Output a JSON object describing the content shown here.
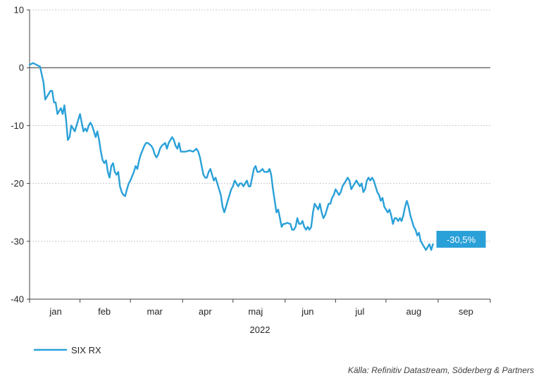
{
  "chart_data": {
    "type": "line",
    "ylim": [
      -40,
      10
    ],
    "yticks": [
      10,
      0,
      -10,
      -20,
      -30,
      -40
    ],
    "ytick_labels": [
      "10",
      "0",
      "-10",
      "-20",
      "-30",
      "-40"
    ],
    "grid": "horizontal dotted",
    "zero_line": true,
    "xlim": [
      0,
      265
    ],
    "months": [
      {
        "label": "jan",
        "center": 15
      },
      {
        "label": "feb",
        "center": 43
      },
      {
        "label": "mar",
        "center": 72
      },
      {
        "label": "apr",
        "center": 101
      },
      {
        "label": "maj",
        "center": 130
      },
      {
        "label": "jun",
        "center": 160
      },
      {
        "label": "jul",
        "center": 190
      },
      {
        "label": "aug",
        "center": 221
      },
      {
        "label": "sep",
        "center": 251
      }
    ],
    "month_bounds": [
      0,
      29,
      58,
      88,
      117,
      147,
      176,
      205,
      235,
      265
    ],
    "year_label": "2022",
    "series": [
      {
        "name": "SIX RX",
        "color": "#2aa0d8",
        "points": [
          [
            0,
            0.5
          ],
          [
            2,
            0.8
          ],
          [
            4,
            0.5
          ],
          [
            6,
            0.2
          ],
          [
            8,
            -2.5
          ],
          [
            9,
            -5.5
          ],
          [
            10,
            -5
          ],
          [
            12,
            -4
          ],
          [
            13,
            -4
          ],
          [
            14,
            -6
          ],
          [
            15,
            -6
          ],
          [
            16,
            -8
          ],
          [
            17,
            -7.5
          ],
          [
            18,
            -7
          ],
          [
            19,
            -8
          ],
          [
            20,
            -6.5
          ],
          [
            21,
            -9
          ],
          [
            22,
            -12.5
          ],
          [
            23,
            -12
          ],
          [
            24,
            -10
          ],
          [
            25,
            -10.5
          ],
          [
            26,
            -11
          ],
          [
            28,
            -9
          ],
          [
            29,
            -8
          ],
          [
            30,
            -9.5
          ],
          [
            31,
            -11
          ],
          [
            32,
            -10.5
          ],
          [
            33,
            -11
          ],
          [
            34,
            -10
          ],
          [
            35,
            -9.5
          ],
          [
            36,
            -10
          ],
          [
            37,
            -11
          ],
          [
            38,
            -12
          ],
          [
            39,
            -11
          ],
          [
            40,
            -12.5
          ],
          [
            41,
            -14.5
          ],
          [
            42,
            -16
          ],
          [
            43,
            -16.5
          ],
          [
            44,
            -16
          ],
          [
            45,
            -18
          ],
          [
            46,
            -19
          ],
          [
            47,
            -17
          ],
          [
            48,
            -16.5
          ],
          [
            49,
            -18
          ],
          [
            50,
            -18.5
          ],
          [
            51,
            -18
          ],
          [
            52,
            -20.5
          ],
          [
            53,
            -21.5
          ],
          [
            54,
            -22
          ],
          [
            55,
            -22.2
          ],
          [
            56,
            -21
          ],
          [
            57,
            -20
          ],
          [
            58,
            -19.5
          ],
          [
            60,
            -18
          ],
          [
            61,
            -17
          ],
          [
            62,
            -17.5
          ],
          [
            63,
            -16
          ],
          [
            64,
            -15
          ],
          [
            66,
            -13.5
          ],
          [
            67,
            -13
          ],
          [
            68,
            -13
          ],
          [
            70,
            -13.5
          ],
          [
            71,
            -14
          ],
          [
            72,
            -15
          ],
          [
            73,
            -15.5
          ],
          [
            74,
            -15
          ],
          [
            75,
            -14
          ],
          [
            76,
            -13.5
          ],
          [
            78,
            -13
          ],
          [
            79,
            -14
          ],
          [
            80,
            -13
          ],
          [
            81,
            -12.5
          ],
          [
            82,
            -12
          ],
          [
            83,
            -12.5
          ],
          [
            84,
            -13.5
          ],
          [
            85,
            -14
          ],
          [
            86,
            -13
          ],
          [
            87,
            -14.5
          ],
          [
            88,
            -14.5
          ],
          [
            90,
            -14.5
          ],
          [
            92,
            -14.3
          ],
          [
            94,
            -14.5
          ],
          [
            96,
            -14
          ],
          [
            97,
            -14.5
          ],
          [
            98,
            -15.5
          ],
          [
            99,
            -17
          ],
          [
            100,
            -18.5
          ],
          [
            101,
            -19
          ],
          [
            102,
            -19
          ],
          [
            103,
            -18
          ],
          [
            104,
            -17.5
          ],
          [
            105,
            -18.5
          ],
          [
            106,
            -19.5
          ],
          [
            107,
            -19
          ],
          [
            108,
            -20
          ],
          [
            109,
            -21
          ],
          [
            110,
            -22
          ],
          [
            111,
            -24
          ],
          [
            112,
            -25
          ],
          [
            113,
            -24
          ],
          [
            114,
            -23
          ],
          [
            115,
            -22
          ],
          [
            116,
            -21
          ],
          [
            117,
            -20.5
          ],
          [
            118,
            -19.5
          ],
          [
            119,
            -20
          ],
          [
            120,
            -20.5
          ],
          [
            121,
            -20
          ],
          [
            122,
            -20
          ],
          [
            123,
            -20.5
          ],
          [
            124,
            -20
          ],
          [
            125,
            -19.5
          ],
          [
            126,
            -20.5
          ],
          [
            127,
            -20.5
          ],
          [
            128,
            -19
          ],
          [
            129,
            -17.5
          ],
          [
            130,
            -17
          ],
          [
            131,
            -18
          ],
          [
            132,
            -18
          ],
          [
            133,
            -17.8
          ],
          [
            134,
            -17.5
          ],
          [
            135,
            -18
          ],
          [
            136,
            -18
          ],
          [
            137,
            -18
          ],
          [
            138,
            -17.5
          ],
          [
            139,
            -18.5
          ],
          [
            140,
            -21
          ],
          [
            141,
            -23
          ],
          [
            142,
            -25
          ],
          [
            143,
            -24.5
          ],
          [
            144,
            -26
          ],
          [
            145,
            -27.5
          ],
          [
            146,
            -27
          ],
          [
            147,
            -27
          ],
          [
            148,
            -26.8
          ],
          [
            150,
            -27
          ],
          [
            151,
            -28
          ],
          [
            152,
            -28
          ],
          [
            153,
            -27.5
          ],
          [
            154,
            -26
          ],
          [
            155,
            -27
          ],
          [
            156,
            -27
          ],
          [
            157,
            -26.5
          ],
          [
            158,
            -27.5
          ],
          [
            159,
            -28
          ],
          [
            160,
            -27.5
          ],
          [
            161,
            -28
          ],
          [
            162,
            -27.5
          ],
          [
            163,
            -25
          ],
          [
            164,
            -23.5
          ],
          [
            165,
            -24
          ],
          [
            166,
            -24.5
          ],
          [
            167,
            -23.5
          ],
          [
            168,
            -25
          ],
          [
            169,
            -26
          ],
          [
            170,
            -25.5
          ],
          [
            171,
            -24.5
          ],
          [
            172,
            -23.5
          ],
          [
            173,
            -23.5
          ],
          [
            174,
            -22.5
          ],
          [
            175,
            -22
          ],
          [
            176,
            -21
          ],
          [
            177,
            -21.5
          ],
          [
            178,
            -22
          ],
          [
            179,
            -21.5
          ],
          [
            180,
            -20.5
          ],
          [
            181,
            -20
          ],
          [
            182,
            -19.5
          ],
          [
            183,
            -19
          ],
          [
            184,
            -19.5
          ],
          [
            185,
            -21
          ],
          [
            186,
            -20.5
          ],
          [
            187,
            -20
          ],
          [
            188,
            -19.5
          ],
          [
            189,
            -20
          ],
          [
            190,
            -20.5
          ],
          [
            191,
            -20
          ],
          [
            192,
            -21.5
          ],
          [
            193,
            -21
          ],
          [
            194,
            -19.5
          ],
          [
            195,
            -19
          ],
          [
            196,
            -19.5
          ],
          [
            197,
            -19
          ],
          [
            198,
            -19.5
          ],
          [
            199,
            -20.5
          ],
          [
            200,
            -21.5
          ],
          [
            201,
            -22
          ],
          [
            202,
            -23
          ],
          [
            203,
            -22.5
          ],
          [
            204,
            -24
          ],
          [
            205,
            -24.5
          ],
          [
            206,
            -25
          ],
          [
            207,
            -24.5
          ],
          [
            208,
            -25.5
          ],
          [
            209,
            -27
          ],
          [
            210,
            -26
          ],
          [
            211,
            -26
          ],
          [
            212,
            -26.5
          ],
          [
            213,
            -26
          ],
          [
            214,
            -26.5
          ],
          [
            215,
            -25.5
          ],
          [
            216,
            -24
          ],
          [
            217,
            -23
          ],
          [
            218,
            -24
          ],
          [
            219,
            -25.5
          ],
          [
            220,
            -26.5
          ],
          [
            221,
            -27.5
          ],
          [
            222,
            -28
          ],
          [
            223,
            -29
          ],
          [
            224,
            -28.5
          ],
          [
            225,
            -30
          ],
          [
            226,
            -30.5
          ],
          [
            227,
            -31
          ],
          [
            228,
            -31.5
          ],
          [
            229,
            -31
          ],
          [
            230,
            -30.5
          ],
          [
            231,
            -31.5
          ],
          [
            232,
            -30.5
          ]
        ],
        "end_value_label": "-30,5%"
      }
    ],
    "legend": {
      "position": "bottom-left"
    },
    "source": "Källa: Refinitiv Datastream, Söderberg & Partners"
  }
}
